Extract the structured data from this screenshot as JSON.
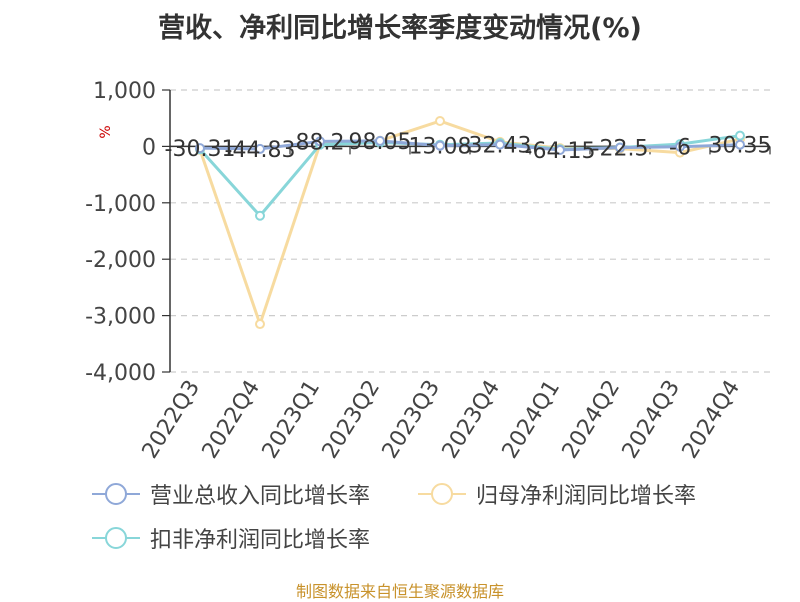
{
  "title": "营收、净利同比增长率季度变动情况(%)",
  "source": "制图数据来自恒生聚源数据库",
  "chart_data": {
    "type": "line",
    "title": "营收、净利同比增长率季度变动情况(%)",
    "ylabel": "%",
    "ylim": [
      -4000,
      1000
    ],
    "yticks": [
      1000,
      0,
      -1000,
      -2000,
      -3000,
      -4000
    ],
    "ytick_labels": [
      "1,000",
      "0",
      "-1,000",
      "-2,000",
      "-3,000",
      "-4,000"
    ],
    "grid": true,
    "legend_position": "bottom",
    "categories": [
      "2022Q3",
      "2022Q4",
      "2023Q1",
      "2023Q2",
      "2023Q3",
      "2023Q4",
      "2024Q1",
      "2024Q2",
      "2024Q3",
      "2024Q4"
    ],
    "series": [
      {
        "name": "营业总收入同比增长率",
        "color": "#8fa8d8",
        "values": [
          -30.31,
          -44.83,
          88.2,
          98.05,
          13.08,
          32.43,
          -64.15,
          -22.5,
          -6,
          30.35
        ],
        "labels": [
          "-30.31",
          "-44.83",
          "88.2",
          "98.05",
          "13.08",
          "32.43",
          "-64.15",
          "-22.5",
          "-6",
          "30.35"
        ]
      },
      {
        "name": "归母净利润同比增长率",
        "color": "#f7dba0",
        "values": [
          -60,
          -3150,
          40,
          100,
          450,
          80,
          -30,
          -40,
          -110,
          130
        ]
      },
      {
        "name": "扣非净利润同比增长率",
        "color": "#88d6d9",
        "values": [
          -50,
          -1230,
          30,
          70,
          30,
          60,
          -50,
          -20,
          40,
          190
        ]
      }
    ]
  }
}
